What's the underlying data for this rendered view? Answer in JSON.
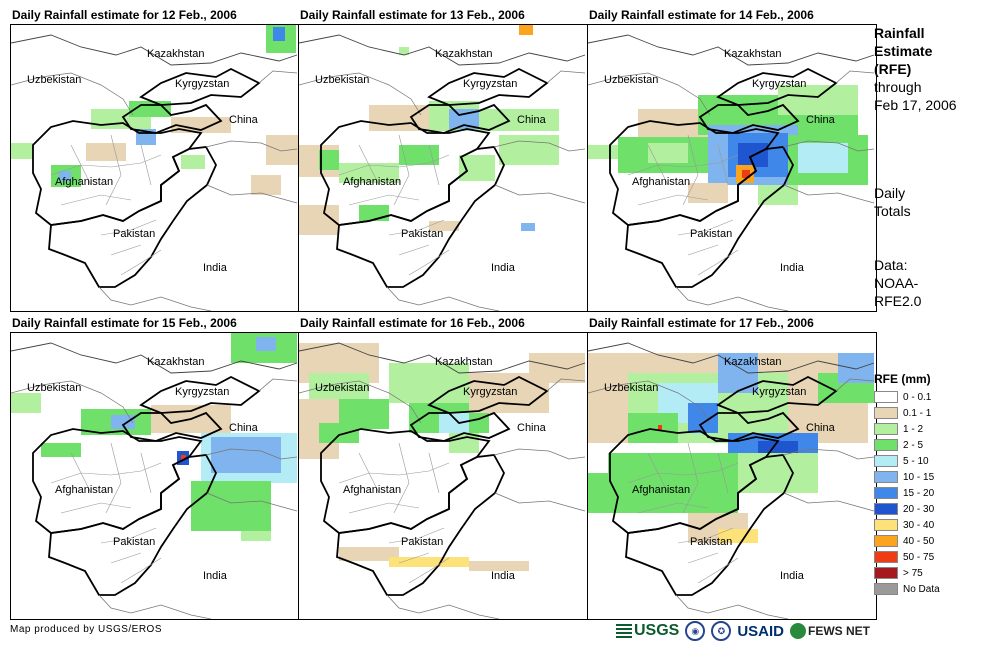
{
  "panels": [
    {
      "title": "Daily Rainfall estimate for 12 Feb., 2006"
    },
    {
      "title": "Daily Rainfall estimate for 13 Feb., 2006"
    },
    {
      "title": "Daily Rainfall estimate for 14 Feb., 2006"
    },
    {
      "title": "Daily Rainfall estimate for 15 Feb., 2006"
    },
    {
      "title": "Daily Rainfall estimate for 16 Feb., 2006"
    },
    {
      "title": "Daily Rainfall estimate for 17 Feb., 2006"
    }
  ],
  "map_labels": {
    "kazakhstan": "Kazakhstan",
    "uzbekistan": "Uzbekistan",
    "kyrgyzstan": "Kyrgyzstan",
    "china": "China",
    "afghanistan": "Afghanistan",
    "pakistan": "Pakistan",
    "india": "India"
  },
  "sidebar": {
    "title_line1": "Rainfall",
    "title_line2": "Estimate",
    "title_line3": "(RFE)",
    "through": "through",
    "date": "Feb 17, 2006",
    "daily1": "Daily",
    "daily2": "Totals",
    "data_label": "Data:",
    "data_src1": "NOAA-",
    "data_src2": "RFE2.0"
  },
  "legend": {
    "title": "RFE (mm)",
    "items": [
      {
        "label": "0 - 0.1",
        "color": "#ffffff"
      },
      {
        "label": "0.1 - 1",
        "color": "#e8d5b5"
      },
      {
        "label": "1 - 2",
        "color": "#b2f0a0"
      },
      {
        "label": "2 - 5",
        "color": "#6fe06a"
      },
      {
        "label": "5 - 10",
        "color": "#b4ecf6"
      },
      {
        "label": "10 - 15",
        "color": "#7fb4ef"
      },
      {
        "label": "15 - 20",
        "color": "#3f87e8"
      },
      {
        "label": "20 - 30",
        "color": "#1f56d0"
      },
      {
        "label": "30 - 40",
        "color": "#fde27a"
      },
      {
        "label": "40 - 50",
        "color": "#fca41e"
      },
      {
        "label": "50 - 75",
        "color": "#f03c14"
      },
      {
        "label": "> 75",
        "color": "#a5181e"
      },
      {
        "label": "No Data",
        "color": "#9a9a9a"
      }
    ]
  },
  "footer": {
    "credit": "Map produced by USGS/EROS",
    "usgs": "USGS",
    "noaa": "NOAA",
    "usaid": "USAID",
    "fews": "FEWS NET"
  }
}
